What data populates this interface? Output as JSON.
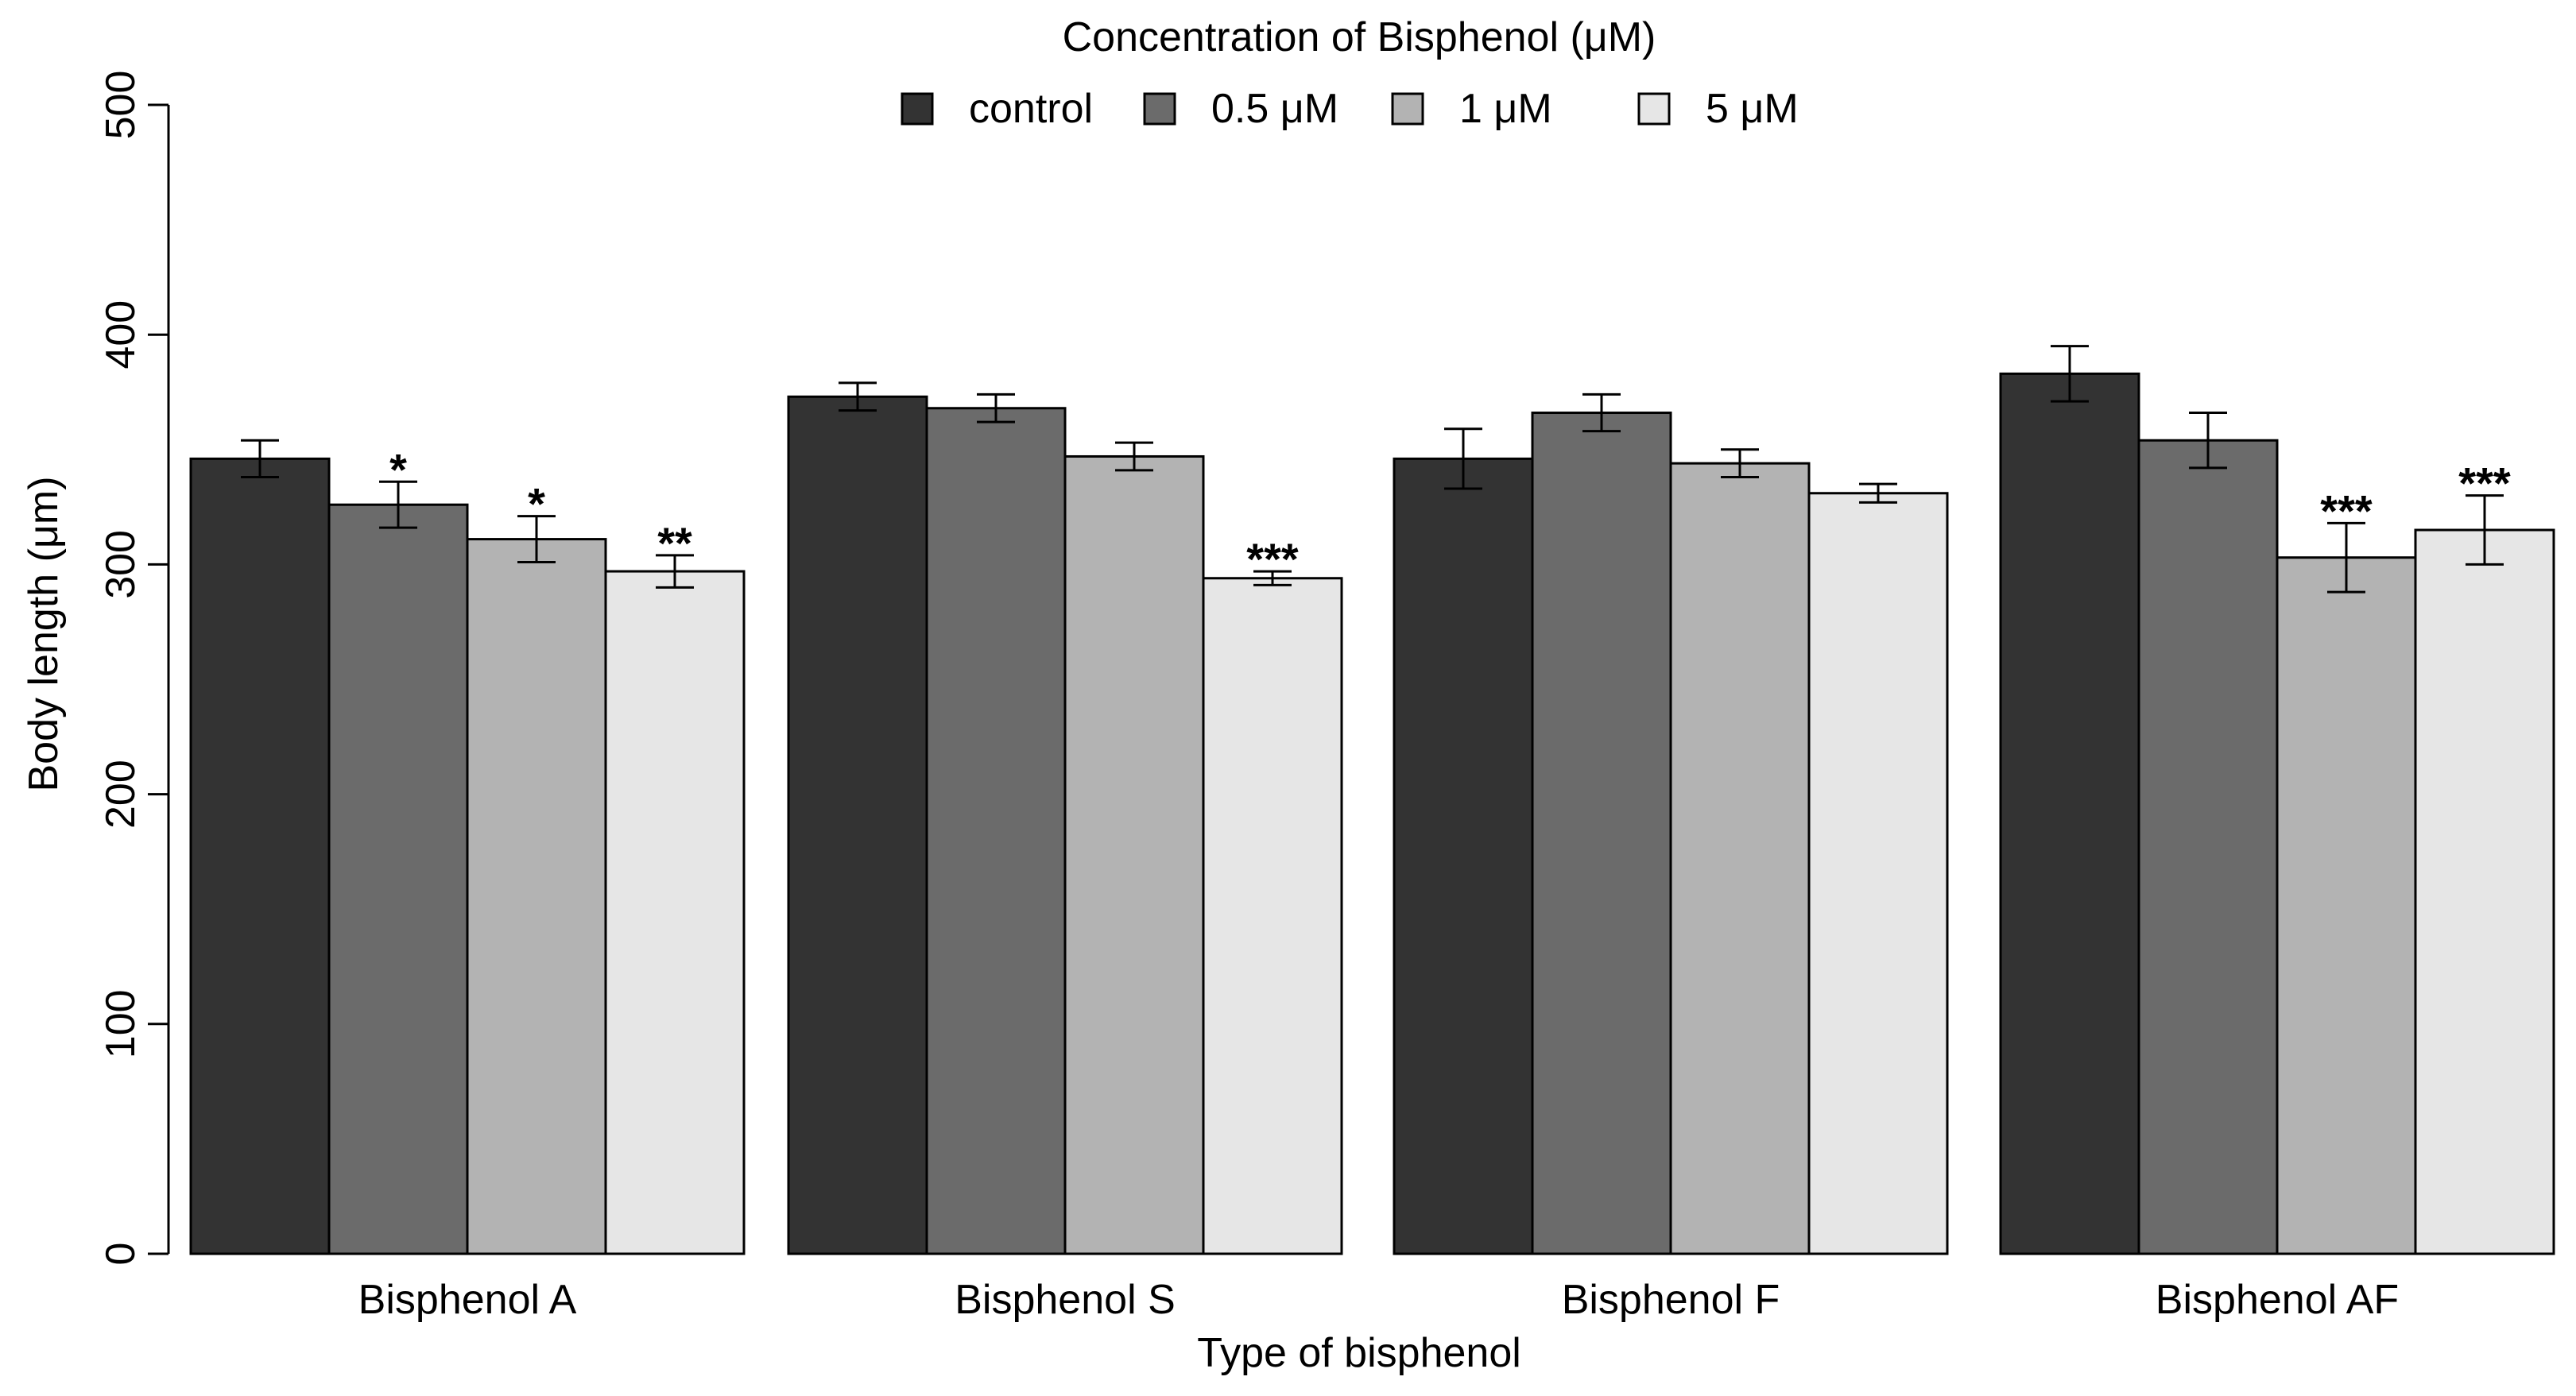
{
  "chart_data": {
    "type": "bar",
    "title": "",
    "legend_title": "Concentration of Bisphenol (μM)",
    "legend_position": "top-center",
    "xlabel": "Type of bisphenol",
    "ylabel": "Body length (μm)",
    "ylim": [
      0,
      500
    ],
    "yticks": [
      0,
      100,
      200,
      300,
      400,
      500
    ],
    "categories": [
      "Bisphenol A",
      "Bisphenol S",
      "Bisphenol F",
      "Bisphenol AF"
    ],
    "series": [
      {
        "name": "control",
        "color": "#333333",
        "values": [
          346,
          373,
          346,
          383
        ],
        "errors": [
          8,
          6,
          13,
          12
        ],
        "significance": [
          "",
          "",
          "",
          ""
        ]
      },
      {
        "name": "0.5 μM",
        "color": "#6b6b6b",
        "values": [
          326,
          368,
          366,
          354
        ],
        "errors": [
          10,
          6,
          8,
          12
        ],
        "significance": [
          "*",
          "",
          "",
          ""
        ]
      },
      {
        "name": "1 μM",
        "color": "#b3b3b3",
        "values": [
          311,
          347,
          344,
          303
        ],
        "errors": [
          10,
          6,
          6,
          15
        ],
        "significance": [
          "*",
          "",
          "",
          "***"
        ]
      },
      {
        "name": "5 μM",
        "color": "#e6e6e6",
        "values": [
          297,
          294,
          331,
          315
        ],
        "errors": [
          7,
          3,
          4,
          15
        ],
        "significance": [
          "**",
          "***",
          "",
          "***"
        ]
      }
    ]
  }
}
